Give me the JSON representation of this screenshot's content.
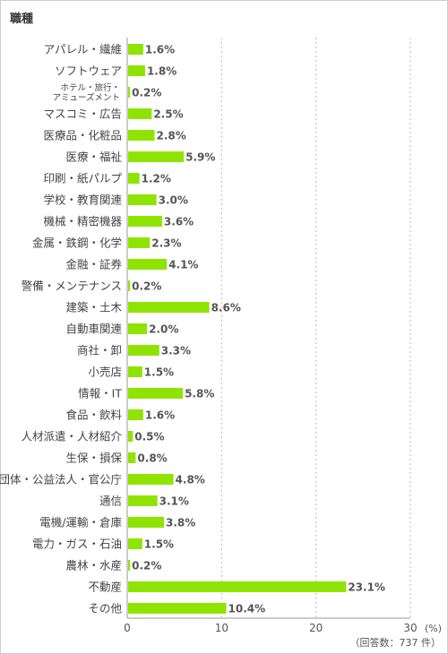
{
  "chart_data": {
    "type": "bar",
    "orientation": "horizontal",
    "title": "職種",
    "categories": [
      "アパレル・繊維",
      "ソフトウェア",
      "ホテル・旅行・アミューズメント",
      "マスコミ・広告",
      "医療品・化粧品",
      "医療・福祉",
      "印刷・紙パルプ",
      "学校・教育関連",
      "機械・精密機器",
      "金属・鉄鋼・化学",
      "金融・証券",
      "警備・メンテナンス",
      "建築・土木",
      "自動車関連",
      "商社・卸",
      "小売店",
      "情報・IT",
      "食品・飲料",
      "人材派遣・人材紹介",
      "生保・損保",
      "団体・公益法人・官公庁",
      "通信",
      "電機/運輸・倉庫",
      "電力・ガス・石油",
      "農林・水産",
      "不動産",
      "その他"
    ],
    "values": [
      1.6,
      1.8,
      0.2,
      2.5,
      2.8,
      5.9,
      1.2,
      3.0,
      3.6,
      2.3,
      4.1,
      0.2,
      8.6,
      2.0,
      3.3,
      1.5,
      5.8,
      1.6,
      0.5,
      0.8,
      4.8,
      3.1,
      3.8,
      1.5,
      0.2,
      23.1,
      10.4
    ],
    "value_labels": [
      "1.6%",
      "1.8%",
      "0.2%",
      "2.5%",
      "2.8%",
      "5.9%",
      "1.2%",
      "3.0%",
      "3.6%",
      "2.3%",
      "4.1%",
      "0.2%",
      "8.6%",
      "2.0%",
      "3.3%",
      "1.5%",
      "5.8%",
      "1.6%",
      "0.5%",
      "0.8%",
      "4.8%",
      "3.1%",
      "3.8%",
      "1.5%",
      "0.2%",
      "23.1%",
      "10.4%"
    ],
    "xlim": [
      0,
      30
    ],
    "xticks": [
      "0",
      "10",
      "20",
      "30"
    ],
    "xunit": "(%)",
    "footnote": "（回答数：737 件）",
    "grid": true,
    "colors": {
      "bar": "#8ee400",
      "grid": "#bbbbbb",
      "axis": "#999999"
    }
  }
}
